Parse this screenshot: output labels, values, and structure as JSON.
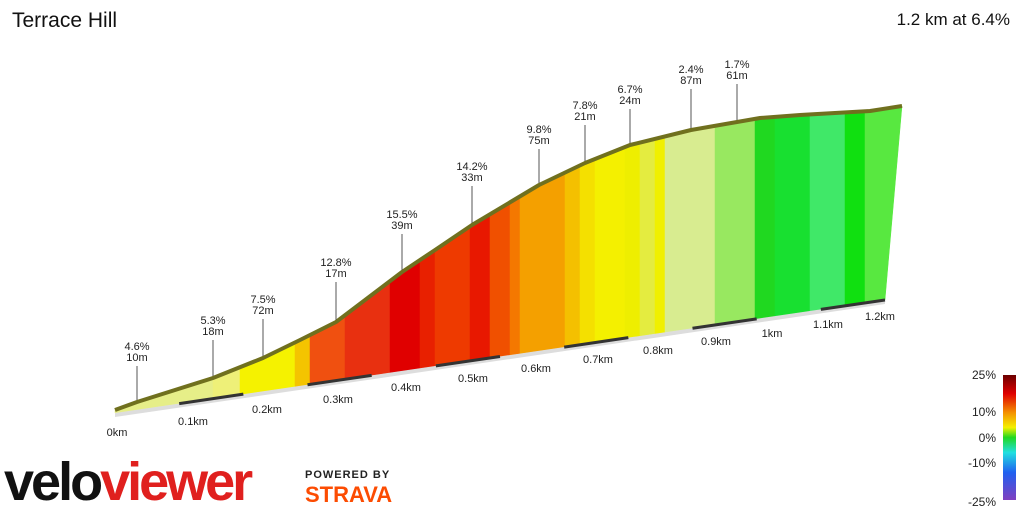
{
  "header": {
    "title": "Terrace Hill",
    "summary": "1.2 km at 6.4%"
  },
  "annotations": [
    {
      "grade": "4.6%",
      "length": "10m"
    },
    {
      "grade": "5.3%",
      "length": "18m"
    },
    {
      "grade": "7.5%",
      "length": "72m"
    },
    {
      "grade": "12.8%",
      "length": "17m"
    },
    {
      "grade": "15.5%",
      "length": "39m"
    },
    {
      "grade": "14.2%",
      "length": "33m"
    },
    {
      "grade": "9.8%",
      "length": "75m"
    },
    {
      "grade": "7.8%",
      "length": "21m"
    },
    {
      "grade": "6.7%",
      "length": "24m"
    },
    {
      "grade": "2.4%",
      "length": "87m"
    },
    {
      "grade": "1.7%",
      "length": "61m"
    }
  ],
  "distance_labels": [
    "0km",
    "0.1km",
    "0.2km",
    "0.3km",
    "0.4km",
    "0.5km",
    "0.6km",
    "0.7km",
    "0.8km",
    "0.9km",
    "1km",
    "1.1km",
    "1.2km"
  ],
  "legend_labels": [
    "25%",
    "10%",
    "0%",
    "-10%",
    "-25%"
  ],
  "logo": {
    "velo": "velo",
    "viewer": "viewer",
    "powered": "POWERED BY",
    "strava": "STRAVA"
  }
}
